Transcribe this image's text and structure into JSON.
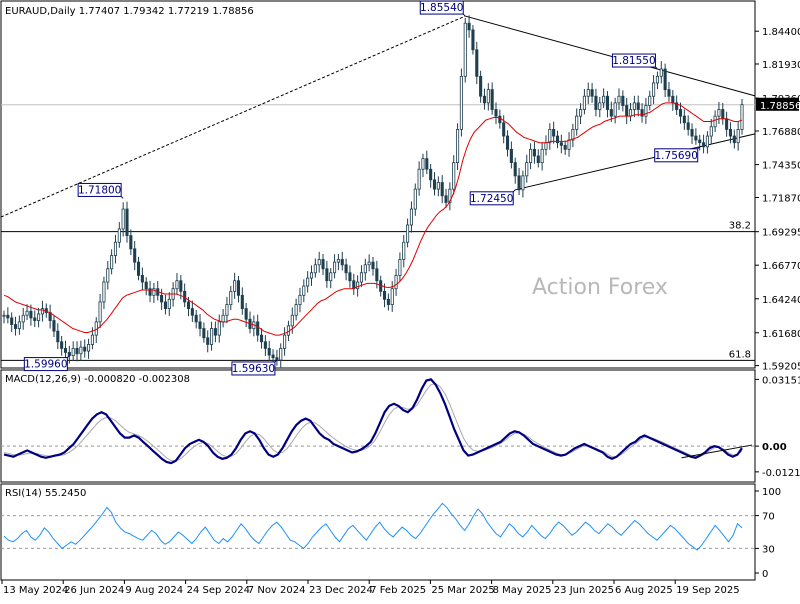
{
  "chart_data": [
    {
      "type": "candlestick",
      "pane": "price",
      "symbol_title": "EURAUD,Daily",
      "ohlc": [
        "1.77407",
        "1.79342",
        "1.77219",
        "1.78856"
      ],
      "last_price": "1.78856",
      "ylim": [
        1.591,
        1.866
      ],
      "y_ticks": [
        "1.84400",
        "1.81930",
        "1.79360",
        "1.76880",
        "1.74350",
        "1.71870",
        "1.69295",
        "1.66770",
        "1.64240",
        "1.61680",
        "1.59205"
      ],
      "x_ticks": [
        "13 May 2024",
        "26 Jun 2024",
        "9 Aug 2024",
        "24 Sep 2024",
        "7 Nov 2024",
        "23 Dec 2024",
        "7 Feb 2025",
        "25 Mar 2025",
        "8 May 2025",
        "23 Jun 2025",
        "6 Aug 2025",
        "19 Sep 2025"
      ],
      "annotations": [
        {
          "label": "1.85540",
          "value": 1.8554,
          "date_index": 120
        },
        {
          "label": "1.81550",
          "value": 1.8155,
          "date_index": 170
        },
        {
          "label": "1.71800",
          "value": 1.718,
          "date_index": 31
        },
        {
          "label": "1.72450",
          "value": 1.7245,
          "date_index": 133
        },
        {
          "label": "1.75690",
          "value": 1.7569,
          "date_index": 181
        },
        {
          "label": "1.59960",
          "value": 1.5996,
          "date_index": 17
        },
        {
          "label": "1.59630",
          "value": 1.5963,
          "date_index": 71
        }
      ],
      "fib_levels": [
        {
          "label": "38.2",
          "value": 1.693
        },
        {
          "label": "61.8",
          "value": 1.596
        }
      ],
      "moving_average_color": "#e00000",
      "candle_color": "#1f3f4f",
      "watermark": "Action Forex",
      "closes": [
        1.63,
        1.628,
        1.623,
        1.62,
        1.625,
        1.63,
        1.633,
        1.628,
        1.626,
        1.631,
        1.635,
        1.632,
        1.626,
        1.618,
        1.61,
        1.605,
        1.602,
        1.5996,
        1.605,
        1.601,
        1.606,
        1.603,
        1.608,
        1.615,
        1.625,
        1.64,
        1.655,
        1.665,
        1.675,
        1.685,
        1.695,
        1.71,
        1.69,
        1.68,
        1.67,
        1.66,
        1.655,
        1.65,
        1.645,
        1.65,
        1.645,
        1.64,
        1.635,
        1.642,
        1.65,
        1.656,
        1.648,
        1.64,
        1.635,
        1.63,
        1.625,
        1.62,
        1.613,
        1.608,
        1.62,
        1.615,
        1.625,
        1.63,
        1.638,
        1.648,
        1.656,
        1.645,
        1.635,
        1.627,
        1.62,
        1.625,
        1.615,
        1.61,
        1.605,
        1.6,
        1.598,
        1.5963,
        1.605,
        1.615,
        1.622,
        1.63,
        1.638,
        1.645,
        1.652,
        1.658,
        1.662,
        1.668,
        1.672,
        1.665,
        1.656,
        1.662,
        1.67,
        1.672,
        1.668,
        1.662,
        1.656,
        1.65,
        1.655,
        1.662,
        1.668,
        1.67,
        1.665,
        1.656,
        1.648,
        1.642,
        1.638,
        1.65,
        1.66,
        1.672,
        1.685,
        1.698,
        1.71,
        1.725,
        1.74,
        1.748,
        1.74,
        1.732,
        1.725,
        1.73,
        1.72,
        1.715,
        1.725,
        1.745,
        1.77,
        1.81,
        1.85,
        1.845,
        1.83,
        1.81,
        1.795,
        1.79,
        1.8,
        1.785,
        1.78,
        1.775,
        1.765,
        1.755,
        1.745,
        1.735,
        1.7245,
        1.735,
        1.745,
        1.755,
        1.75,
        1.745,
        1.755,
        1.76,
        1.77,
        1.765,
        1.76,
        1.758,
        1.755,
        1.762,
        1.77,
        1.78,
        1.785,
        1.795,
        1.8,
        1.795,
        1.785,
        1.79,
        1.795,
        1.785,
        1.78,
        1.79,
        1.795,
        1.788,
        1.78,
        1.785,
        1.79,
        1.785,
        1.78,
        1.788,
        1.795,
        1.805,
        1.81,
        1.8155,
        1.8,
        1.795,
        1.79,
        1.785,
        1.78,
        1.775,
        1.77,
        1.765,
        1.762,
        1.76,
        1.7569,
        1.765,
        1.772,
        1.78,
        1.785,
        1.778,
        1.77,
        1.765,
        1.76,
        1.77,
        1.7886
      ],
      "ma": [
        1.645,
        1.644,
        1.642,
        1.64,
        1.639,
        1.638,
        1.637,
        1.636,
        1.635,
        1.634,
        1.634,
        1.633,
        1.632,
        1.63,
        1.628,
        1.626,
        1.624,
        1.622,
        1.62,
        1.619,
        1.618,
        1.617,
        1.617,
        1.618,
        1.619,
        1.621,
        1.624,
        1.627,
        1.631,
        1.635,
        1.639,
        1.643,
        1.645,
        1.646,
        1.647,
        1.648,
        1.649,
        1.649,
        1.649,
        1.649,
        1.648,
        1.647,
        1.646,
        1.646,
        1.646,
        1.646,
        1.645,
        1.644,
        1.642,
        1.64,
        1.638,
        1.636,
        1.634,
        1.631,
        1.629,
        1.627,
        1.626,
        1.625,
        1.625,
        1.626,
        1.627,
        1.627,
        1.626,
        1.625,
        1.624,
        1.623,
        1.622,
        1.62,
        1.618,
        1.617,
        1.616,
        1.615,
        1.615,
        1.616,
        1.617,
        1.619,
        1.621,
        1.624,
        1.627,
        1.63,
        1.633,
        1.636,
        1.639,
        1.641,
        1.642,
        1.644,
        1.646,
        1.648,
        1.649,
        1.65,
        1.65,
        1.65,
        1.651,
        1.652,
        1.653,
        1.654,
        1.654,
        1.654,
        1.653,
        1.652,
        1.651,
        1.651,
        1.652,
        1.654,
        1.657,
        1.661,
        1.666,
        1.672,
        1.679,
        1.686,
        1.692,
        1.697,
        1.701,
        1.705,
        1.708,
        1.71,
        1.713,
        1.718,
        1.725,
        1.735,
        1.747,
        1.756,
        1.763,
        1.768,
        1.771,
        1.774,
        1.777,
        1.778,
        1.779,
        1.779,
        1.778,
        1.776,
        1.774,
        1.771,
        1.768,
        1.766,
        1.764,
        1.763,
        1.762,
        1.761,
        1.76,
        1.76,
        1.76,
        1.761,
        1.761,
        1.761,
        1.761,
        1.761,
        1.762,
        1.763,
        1.764,
        1.766,
        1.768,
        1.77,
        1.772,
        1.773,
        1.774,
        1.776,
        1.777,
        1.778,
        1.779,
        1.78,
        1.78,
        1.78,
        1.78,
        1.781,
        1.781,
        1.781,
        1.782,
        1.783,
        1.785,
        1.787,
        1.789,
        1.79,
        1.79,
        1.79,
        1.789,
        1.788,
        1.786,
        1.784,
        1.782,
        1.78,
        1.778,
        1.776,
        1.776,
        1.776,
        1.777,
        1.778,
        1.778,
        1.778,
        1.777,
        1.776,
        1.776,
        1.777
      ]
    },
    {
      "type": "line",
      "pane": "macd",
      "title": "MACD(12,26,9) -0.000820 -0.002308",
      "y_ticks": [
        "0.03151",
        "0.00",
        "-0.012158"
      ],
      "current_value": "0.00",
      "ylim": [
        -0.016,
        0.035
      ],
      "series": [
        {
          "name": "MACD",
          "color": "#000080",
          "values": [
            -0.004,
            -0.0045,
            -0.005,
            -0.004,
            -0.003,
            -0.002,
            -0.003,
            -0.004,
            -0.005,
            -0.0055,
            -0.005,
            -0.0045,
            -0.004,
            -0.003,
            -0.001,
            0.001,
            0.004,
            0.007,
            0.01,
            0.013,
            0.015,
            0.016,
            0.015,
            0.012,
            0.009,
            0.006,
            0.004,
            0.004,
            0.005,
            0.004,
            0.002,
            0.0,
            -0.002,
            -0.004,
            -0.006,
            -0.0075,
            -0.008,
            -0.007,
            -0.004,
            -0.001,
            0.001,
            0.002,
            0.003,
            0.002,
            0.0,
            -0.003,
            -0.005,
            -0.006,
            -0.0055,
            -0.004,
            -0.001,
            0.003,
            0.006,
            0.007,
            0.006,
            0.003,
            -0.001,
            -0.004,
            -0.005,
            -0.004,
            -0.001,
            0.003,
            0.007,
            0.01,
            0.012,
            0.013,
            0.012,
            0.009,
            0.006,
            0.004,
            0.003,
            0.001,
            0.0,
            -0.001,
            -0.002,
            -0.003,
            -0.0025,
            -0.0015,
            0.0,
            0.002,
            0.006,
            0.011,
            0.016,
            0.019,
            0.02,
            0.019,
            0.017,
            0.016,
            0.018,
            0.022,
            0.027,
            0.031,
            0.0315,
            0.029,
            0.025,
            0.02,
            0.014,
            0.008,
            0.003,
            -0.002,
            -0.0045,
            -0.004,
            -0.003,
            -0.002,
            -0.001,
            0.0,
            0.001,
            0.002,
            0.004,
            0.006,
            0.007,
            0.0065,
            0.005,
            0.003,
            0.001,
            0.0,
            -0.001,
            -0.002,
            -0.003,
            -0.004,
            -0.0045,
            -0.004,
            -0.0025,
            -0.001,
            0.0,
            0.001,
            0.0,
            -0.001,
            -0.002,
            -0.003,
            -0.005,
            -0.006,
            -0.005,
            -0.003,
            -0.001,
            0.001,
            0.002,
            0.004,
            0.005,
            0.004,
            0.003,
            0.002,
            0.001,
            0.0,
            -0.001,
            -0.002,
            -0.003,
            -0.004,
            -0.005,
            -0.0055,
            -0.0045,
            -0.003,
            -0.001,
            0.0,
            -0.0005,
            -0.002,
            -0.004,
            -0.005,
            -0.004,
            -0.001
          ]
        },
        {
          "name": "Signal",
          "color": "#aaaaaa",
          "values": [
            -0.003,
            -0.0035,
            -0.004,
            -0.0042,
            -0.004,
            -0.0035,
            -0.0033,
            -0.0035,
            -0.004,
            -0.0045,
            -0.0048,
            -0.0047,
            -0.0045,
            -0.004,
            -0.003,
            -0.0015,
            0.0005,
            0.003,
            0.0055,
            0.008,
            0.0105,
            0.0125,
            0.0135,
            0.0133,
            0.012,
            0.01,
            0.008,
            0.0065,
            0.0058,
            0.005,
            0.0038,
            0.0022,
            0.0005,
            -0.0015,
            -0.0035,
            -0.0055,
            -0.0068,
            -0.007,
            -0.006,
            -0.0042,
            -0.002,
            -0.0002,
            0.0012,
            0.0018,
            0.0012,
            -0.0005,
            -0.0025,
            -0.0042,
            -0.005,
            -0.0048,
            -0.0035,
            -0.001,
            0.002,
            0.0045,
            0.0058,
            0.0055,
            0.0035,
            0.0008,
            -0.0018,
            -0.0032,
            -0.003,
            -0.0012,
            0.0018,
            0.005,
            0.008,
            0.0102,
            0.0113,
            0.011,
            0.0095,
            0.0075,
            0.0055,
            0.0038,
            0.0022,
            0.0008,
            -0.0005,
            -0.0015,
            -0.002,
            -0.002,
            -0.0012,
            0.0003,
            0.003,
            0.0068,
            0.011,
            0.0148,
            0.0175,
            0.0186,
            0.0182,
            0.0174,
            0.0176,
            0.0194,
            0.0228,
            0.0264,
            0.029,
            0.0295,
            0.028,
            0.0248,
            0.02,
            0.0145,
            0.009,
            0.0038,
            0.0002,
            -0.0018,
            -0.0025,
            -0.0023,
            -0.0017,
            -0.0008,
            0.0002,
            0.0012,
            0.0028,
            0.0046,
            0.006,
            0.0063,
            0.0056,
            0.0042,
            0.0026,
            0.0012,
            0.0,
            -0.0012,
            -0.0022,
            -0.0032,
            -0.004,
            -0.004,
            -0.0032,
            -0.002,
            -0.0008,
            0.0002,
            0.0001,
            -0.0006,
            -0.0015,
            -0.0024,
            -0.0038,
            -0.005,
            -0.005,
            -0.004,
            -0.0023,
            -0.0005,
            0.001,
            0.0028,
            0.0042,
            0.0042,
            0.0036,
            0.0027,
            0.0017,
            0.0007,
            -0.0003,
            -0.0013,
            -0.0023,
            -0.0033,
            -0.0043,
            -0.005,
            -0.0048,
            -0.0038,
            -0.0022,
            -0.0008,
            -0.0006,
            -0.0014,
            -0.003,
            -0.0042,
            -0.0041,
            -0.0023
          ]
        }
      ]
    },
    {
      "type": "line",
      "pane": "rsi",
      "title": "RSI(14) 55.2450",
      "y_ticks": [
        "100",
        "70",
        "30",
        "0"
      ],
      "ylim": [
        0,
        100
      ],
      "series": [
        {
          "name": "RSI",
          "color": "#1e90ff",
          "values": [
            45,
            40,
            38,
            42,
            48,
            52,
            44,
            40,
            46,
            55,
            50,
            42,
            36,
            30,
            34,
            38,
            35,
            40,
            46,
            52,
            58,
            65,
            72,
            80,
            74,
            62,
            55,
            50,
            48,
            45,
            42,
            40,
            46,
            52,
            48,
            40,
            35,
            38,
            44,
            50,
            46,
            41,
            36,
            42,
            50,
            56,
            48,
            40,
            36,
            42,
            38,
            44,
            52,
            60,
            54,
            46,
            40,
            36,
            44,
            52,
            58,
            62,
            56,
            48,
            40,
            38,
            34,
            30,
            36,
            44,
            50,
            56,
            60,
            52,
            44,
            38,
            46,
            54,
            58,
            52,
            46,
            40,
            48,
            56,
            62,
            54,
            48,
            44,
            50,
            56,
            52,
            46,
            42,
            48,
            56,
            64,
            72,
            78,
            85,
            80,
            72,
            66,
            58,
            52,
            60,
            70,
            78,
            72,
            62,
            55,
            48,
            44,
            52,
            60,
            55,
            48,
            44,
            50,
            58,
            52,
            46,
            42,
            48,
            56,
            62,
            58,
            52,
            46,
            50,
            56,
            62,
            58,
            52,
            48,
            54,
            60,
            56,
            50,
            46,
            52,
            58,
            64,
            60,
            54,
            48,
            44,
            40,
            46,
            52,
            58,
            54,
            48,
            42,
            36,
            32,
            28,
            34,
            42,
            50,
            58,
            52,
            45,
            38,
            46,
            60,
            55
          ]
        }
      ]
    }
  ]
}
